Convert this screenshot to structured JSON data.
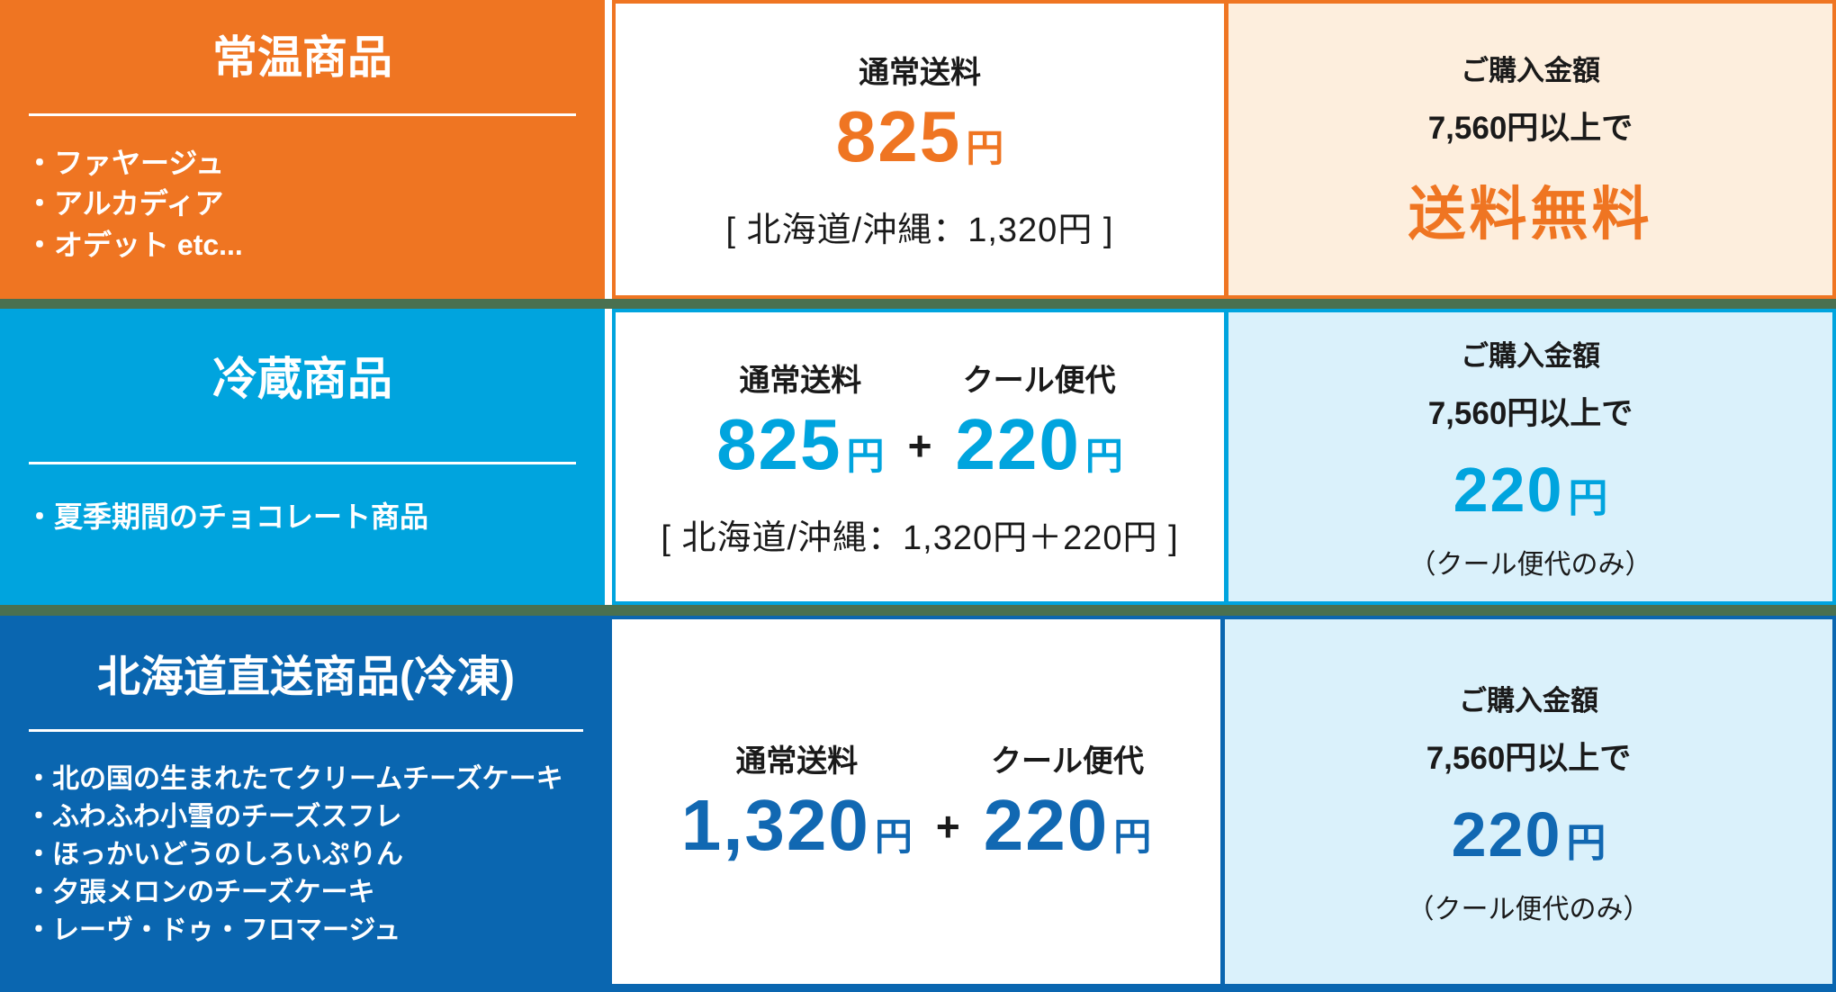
{
  "palette": {
    "orange": "#EF7522",
    "orange_tint": "#FDEEDD",
    "cyan": "#00A4DE",
    "blue_tint": "#DAF1FB",
    "navy": "#0A66B0",
    "separator_green": "#4A7050",
    "text": "#1A1A1A"
  },
  "rows": [
    {
      "category": {
        "title": "常温商品",
        "items": [
          "・ファヤージュ",
          "・アルカディア",
          "・オデット etc..."
        ]
      },
      "shipping": {
        "groups": [
          {
            "label": "通常送料",
            "amount": "825",
            "unit": "円"
          }
        ],
        "note": "[ 北海道/沖縄：1,320円 ]"
      },
      "promo": {
        "line1": "ご購入金額",
        "line2": "7,560円以上で",
        "big": "送料無料"
      }
    },
    {
      "category": {
        "title": "冷蔵商品",
        "items": [
          "・夏季期間のチョコレート商品"
        ]
      },
      "shipping": {
        "groups": [
          {
            "label": "通常送料",
            "amount": "825",
            "unit": "円"
          },
          {
            "label": "クール便代",
            "amount": "220",
            "unit": "円"
          }
        ],
        "plus": "+",
        "note": "[ 北海道/沖縄：1,320円＋220円 ]"
      },
      "promo": {
        "line1": "ご購入金額",
        "line2": "7,560円以上で",
        "big": "220",
        "big_unit": "円",
        "note": "（クール便代のみ）"
      }
    },
    {
      "category": {
        "title": "北海道直送商品(冷凍)",
        "items": [
          "・北の国の生まれたてクリームチーズケーキ",
          "・ふわふわ小雪のチーズスフレ",
          "・ほっかいどうのしろいぷりん",
          "・夕張メロンのチーズケーキ",
          "・レーヴ・ドゥ・フロマージュ"
        ]
      },
      "shipping": {
        "groups": [
          {
            "label": "通常送料",
            "amount": "1,320",
            "unit": "円"
          },
          {
            "label": "クール便代",
            "amount": "220",
            "unit": "円"
          }
        ],
        "plus": "+"
      },
      "promo": {
        "line1": "ご購入金額",
        "line2": "7,560円以上で",
        "big": "220",
        "big_unit": "円",
        "note": "（クール便代のみ）"
      }
    }
  ]
}
